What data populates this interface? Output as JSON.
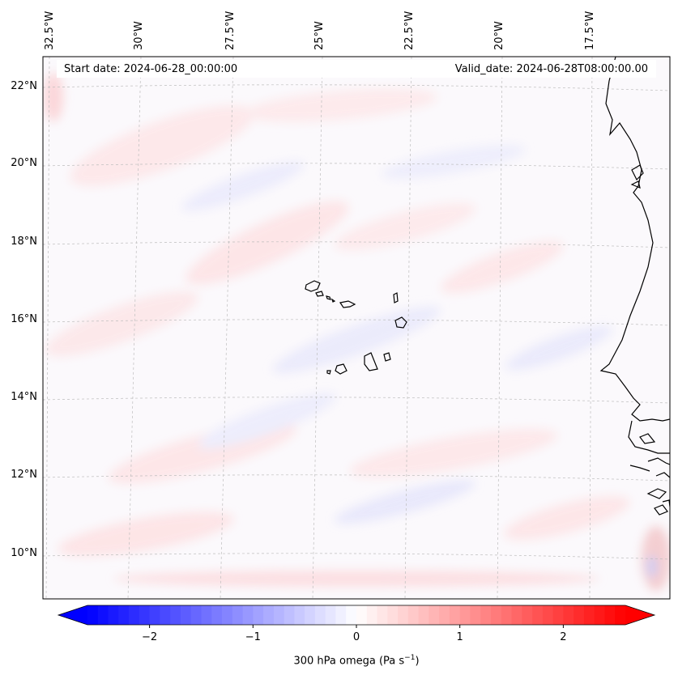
{
  "map": {
    "start_label": "Start date: 2024-06-28_00:00:00",
    "valid_label": "Valid_date: 2024-06-28T08:00:00.00",
    "lon_labels": [
      "32.5°W",
      "30°W",
      "27.5°W",
      "25°W",
      "22.5°W",
      "20°W",
      "17.5°W"
    ],
    "lat_labels": [
      "22°N",
      "20°N",
      "18°N",
      "16°N",
      "14°N",
      "12°N",
      "10°N"
    ],
    "variable": "300 hPa omega",
    "units_text": "(Pa s",
    "units_sup": "−1",
    "units_close": ")"
  },
  "colorbar": {
    "min": -2.6,
    "max": 2.6,
    "ticks": [
      "−2",
      "−1",
      "0",
      "1",
      "2"
    ],
    "tick_values": [
      -2,
      -1,
      0,
      1,
      2
    ],
    "levels": 52,
    "color_negative": "#0000ff",
    "color_zero": "#ffffff",
    "color_positive": "#ff0000"
  }
}
